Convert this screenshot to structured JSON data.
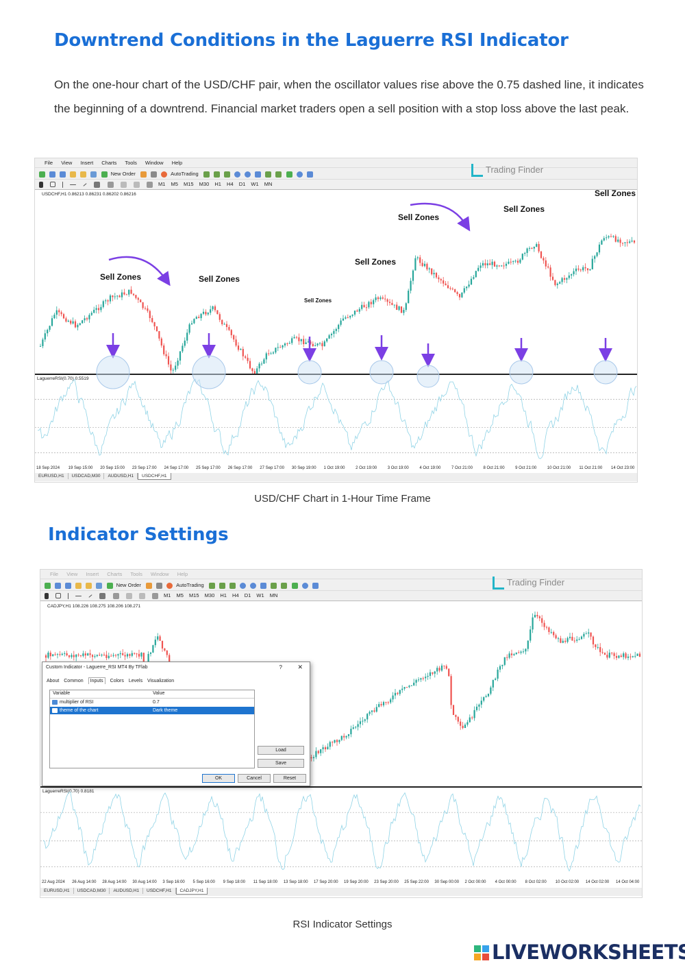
{
  "section1": {
    "heading": "Downtrend Conditions in the Laguerre RSI Indicator",
    "paragraph": "On the one-hour chart of the USD/CHF pair, when the oscillator values rise above the 0.75 dashed line, it indicates the beginning of a downtrend. Financial market traders open a sell position with a stop loss above the last peak."
  },
  "menu": [
    "File",
    "View",
    "Insert",
    "Charts",
    "Tools",
    "Window",
    "Help"
  ],
  "toolbar": {
    "new_order": "New Order",
    "autotrading": "AutoTrading"
  },
  "timeframes": [
    "M1",
    "M5",
    "M15",
    "M30",
    "H1",
    "H4",
    "D1",
    "W1",
    "MN"
  ],
  "logo": "Trading Finder",
  "chart1": {
    "symbol": "USDCHF,H1  0.86213 0.86231 0.86202 0.86216",
    "rsi_label": "LaguerreRSI(0.70) 0.5519",
    "sell_label": "Sell Zones",
    "x_labels": [
      "18 Sep 2024",
      "19 Sep 15:00",
      "20 Sep 15:00",
      "23 Sep 17:00",
      "24 Sep 17:00",
      "25 Sep 17:00",
      "26 Sep 17:00",
      "27 Sep 17:00",
      "30 Sep 19:00",
      "1 Oct 19:00",
      "2 Oct 19:00",
      "3 Oct 19:00",
      "4 Oct 19:00",
      "7 Oct 21:00",
      "8 Oct 21:00",
      "9 Oct 21:00",
      "10 Oct 21:00",
      "11 Oct 21:00",
      "14 Oct 23:00"
    ],
    "tabs": [
      "EURUSD,H1",
      "USDCAD,M30",
      "AUDUSD,H1",
      "USDCHF,H1"
    ],
    "active_tab": 3,
    "caption": "USD/CHF Chart in 1-Hour Time Frame",
    "colors": {
      "bull": "#26a69a",
      "bear": "#ef5350",
      "rsi": "#8fd3e6",
      "arrow": "#7b3fe4"
    }
  },
  "section2": {
    "heading": "Indicator Settings"
  },
  "chart2": {
    "symbol": "CADJPY,H1  108.226 108.275 108.206 108.271",
    "rsi_label": "LaguerreRSI(0.70) 0.8181",
    "x_labels": [
      "22 Aug 2024",
      "26 Aug 14:00",
      "28 Aug 14:00",
      "30 Aug 14:00",
      "3 Sep 16:00",
      "5 Sep 16:00",
      "9 Sep 18:00",
      "11 Sep 18:00",
      "13 Sep 18:00",
      "17 Sep 20:00",
      "19 Sep 20:00",
      "23 Sep 20:00",
      "25 Sep 22:00",
      "30 Sep 00:00",
      "2 Oct 00:00",
      "4 Oct 00:00",
      "8 Oct 02:00",
      "10 Oct 02:00",
      "14 Oct 02:00",
      "14 Oct 04:00"
    ],
    "tabs": [
      "EURUSD,H1",
      "USDCAD,M30",
      "AUDUSD,H1",
      "USDCHF,H1",
      "CADJPY,H1"
    ],
    "active_tab": 4,
    "caption": "RSI Indicator Settings"
  },
  "dialog": {
    "title": "Custom Indicator - Laguerre_RSI MT4 By TFlab",
    "help": "?",
    "close": "✕",
    "tabs": [
      "About",
      "Common",
      "Inputs",
      "Colors",
      "Levels",
      "Visualization"
    ],
    "active_tab": 2,
    "col_variable": "Variable",
    "col_value": "Value",
    "rows": [
      {
        "variable": "multiplier of RSI",
        "value": "0.7"
      },
      {
        "variable": "theme of the chart",
        "value": "Dark theme"
      }
    ],
    "selected_row": 1,
    "load": "Load",
    "save": "Save",
    "ok": "OK",
    "cancel": "Cancel",
    "reset": "Reset"
  },
  "footer": {
    "brand": "LIVEWORKSHEETS"
  }
}
